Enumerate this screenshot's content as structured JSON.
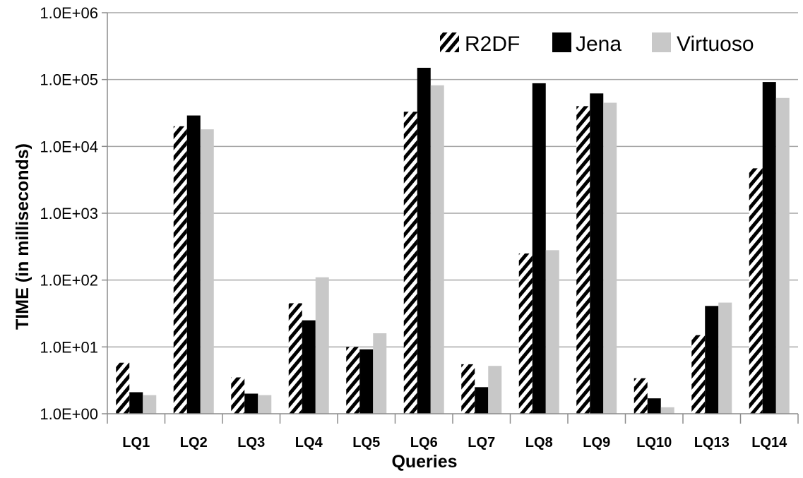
{
  "chart_data": {
    "type": "bar",
    "title": "",
    "xlabel": "Queries",
    "ylabel": "TIME (in milliseconds)",
    "yscale": "log",
    "ylim": [
      1,
      1000000
    ],
    "y_ticks": [
      1,
      10,
      100,
      1000,
      10000,
      100000,
      1000000
    ],
    "y_tick_labels": [
      "1.0E+00",
      "1.0E+01",
      "1.0E+02",
      "1.0E+03",
      "1.0E+04",
      "1.0E+05",
      "1.0E+06"
    ],
    "grid": true,
    "legend_position": "top-right",
    "categories": [
      "LQ1",
      "LQ2",
      "LQ3",
      "LQ4",
      "LQ5",
      "LQ6",
      "LQ7",
      "LQ8",
      "LQ9",
      "LQ10",
      "LQ13",
      "LQ14"
    ],
    "series": [
      {
        "name": "R2DF",
        "color": "#000000",
        "pattern": "diagonal-hatch",
        "values": [
          5.8,
          20000,
          3.5,
          45,
          10,
          33000,
          5.5,
          250,
          40000,
          3.4,
          15,
          4700
        ]
      },
      {
        "name": "Jena",
        "color": "#000000",
        "pattern": "solid",
        "values": [
          2.1,
          29000,
          2.0,
          25,
          9.2,
          150000,
          2.5,
          88000,
          62000,
          1.7,
          41,
          92000
        ]
      },
      {
        "name": "Virtuoso",
        "color": "#c8c8c8",
        "pattern": "solid",
        "values": [
          1.9,
          18000,
          1.9,
          110,
          16,
          82000,
          5.2,
          280,
          45000,
          1.25,
          46,
          53000
        ]
      }
    ]
  }
}
